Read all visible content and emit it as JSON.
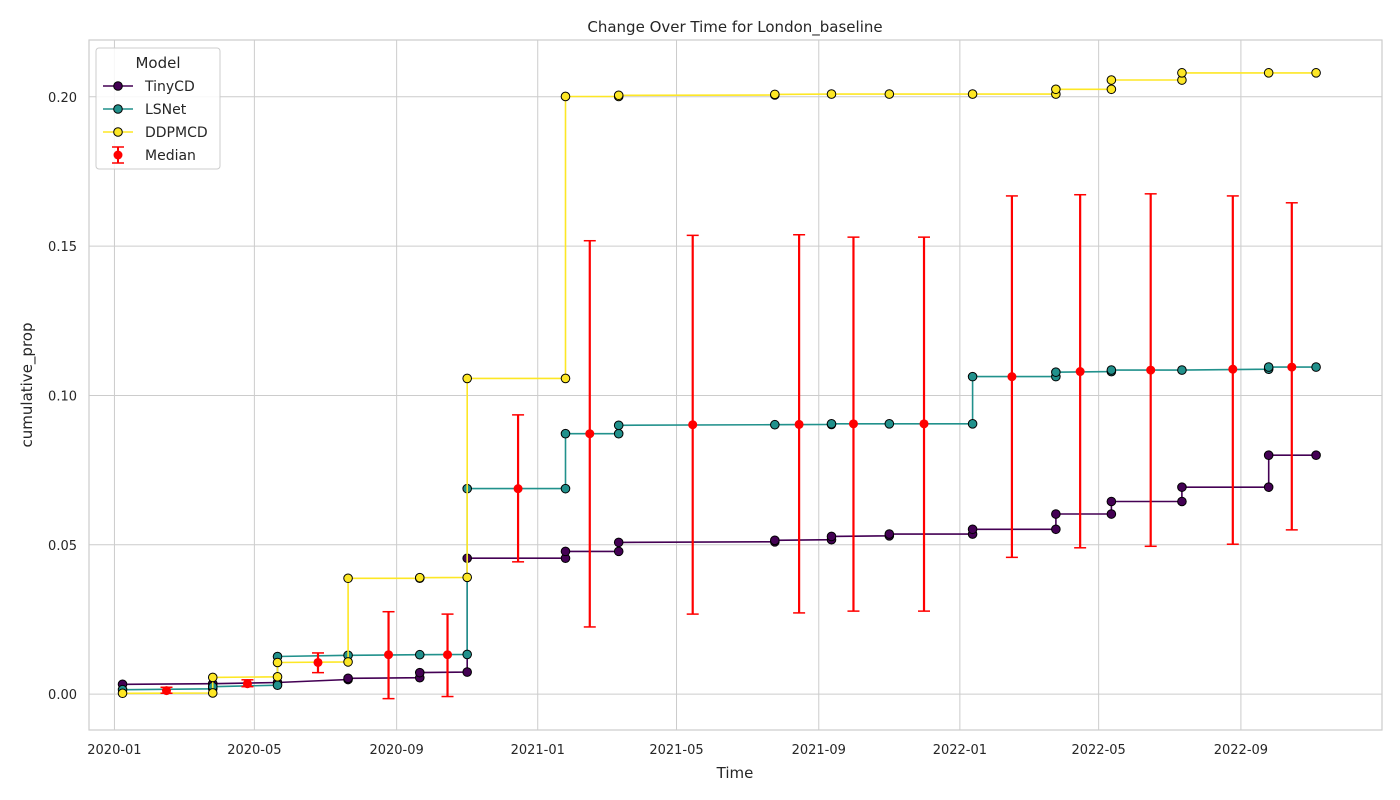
{
  "chart_data": {
    "type": "line",
    "title": "Change Over Time for London_baseline",
    "xlabel": "Time",
    "ylabel": "cumulative_prop",
    "xlim": [
      "2019-12-10",
      "2023-01-01"
    ],
    "ylim": [
      -0.012,
      0.219
    ],
    "x_ticks": [
      "2020-01-01",
      "2020-05-01",
      "2020-09-01",
      "2021-01-01",
      "2021-05-01",
      "2021-09-01",
      "2022-01-01",
      "2022-05-01",
      "2022-09-01"
    ],
    "x_tick_labels": [
      "2020-01",
      "2020-05",
      "2020-09",
      "2021-01",
      "2021-05",
      "2021-09",
      "2022-01",
      "2022-05",
      "2022-09"
    ],
    "y_ticks": [
      0.0,
      0.05,
      0.1,
      0.15,
      0.2
    ],
    "y_tick_labels": [
      "0.00",
      "0.05",
      "0.10",
      "0.15",
      "0.20"
    ],
    "grid": true,
    "legend": {
      "title": "Model",
      "placement": "top-left",
      "entries": [
        "TinyCD",
        "LSNet",
        "DDPMCD",
        "Median"
      ]
    },
    "series": [
      {
        "name": "TinyCD",
        "color": "#440154",
        "points": [
          [
            "2020-01-08",
            0.0033
          ],
          [
            "2020-03-26",
            0.0035
          ],
          [
            "2020-05-21",
            0.0039
          ],
          [
            "2020-07-21",
            0.0049
          ],
          [
            "2020-07-21",
            0.0053
          ],
          [
            "2020-09-21",
            0.0055
          ],
          [
            "2020-09-21",
            0.0072
          ],
          [
            "2020-11-01",
            0.0074
          ],
          [
            "2020-11-01",
            0.0455
          ],
          [
            "2021-01-25",
            0.0455
          ],
          [
            "2021-01-25",
            0.0478
          ],
          [
            "2021-03-12",
            0.0478
          ],
          [
            "2021-03-12",
            0.0508
          ],
          [
            "2021-07-25",
            0.051
          ],
          [
            "2021-07-25",
            0.0515
          ],
          [
            "2021-09-12",
            0.0517
          ],
          [
            "2021-09-12",
            0.0528
          ],
          [
            "2021-11-01",
            0.053
          ],
          [
            "2021-11-01",
            0.0536
          ],
          [
            "2022-01-12",
            0.0536
          ],
          [
            "2022-01-12",
            0.0552
          ],
          [
            "2022-03-25",
            0.0552
          ],
          [
            "2022-03-25",
            0.0603
          ],
          [
            "2022-05-12",
            0.0603
          ],
          [
            "2022-05-12",
            0.0645
          ],
          [
            "2022-07-12",
            0.0645
          ],
          [
            "2022-07-12",
            0.0693
          ],
          [
            "2022-09-25",
            0.0693
          ],
          [
            "2022-09-25",
            0.08
          ],
          [
            "2022-11-05",
            0.08
          ]
        ]
      },
      {
        "name": "LSNet",
        "color": "#21918c",
        "points": [
          [
            "2020-01-08",
            0.0015
          ],
          [
            "2020-03-26",
            0.0018
          ],
          [
            "2020-03-26",
            0.0025
          ],
          [
            "2020-05-21",
            0.003
          ],
          [
            "2020-05-21",
            0.0126
          ],
          [
            "2020-07-21",
            0.013
          ],
          [
            "2020-09-21",
            0.0132
          ],
          [
            "2020-11-01",
            0.0133
          ],
          [
            "2020-11-01",
            0.0688
          ],
          [
            "2021-01-25",
            0.0688
          ],
          [
            "2021-01-25",
            0.0872
          ],
          [
            "2021-03-12",
            0.0872
          ],
          [
            "2021-03-12",
            0.09
          ],
          [
            "2021-07-25",
            0.0902
          ],
          [
            "2021-09-12",
            0.0903
          ],
          [
            "2021-09-12",
            0.0905
          ],
          [
            "2021-11-01",
            0.0905
          ],
          [
            "2022-01-12",
            0.0905
          ],
          [
            "2022-01-12",
            0.1063
          ],
          [
            "2022-03-25",
            0.1063
          ],
          [
            "2022-03-25",
            0.1078
          ],
          [
            "2022-05-12",
            0.108
          ],
          [
            "2022-05-12",
            0.1085
          ],
          [
            "2022-07-12",
            0.1085
          ],
          [
            "2022-09-25",
            0.1088
          ],
          [
            "2022-09-25",
            0.1095
          ],
          [
            "2022-11-05",
            0.1095
          ]
        ]
      },
      {
        "name": "DDPMCD",
        "color": "#fde725",
        "points": [
          [
            "2020-01-08",
            0.0003
          ],
          [
            "2020-03-26",
            0.0004
          ],
          [
            "2020-03-26",
            0.0056
          ],
          [
            "2020-05-21",
            0.0058
          ],
          [
            "2020-05-21",
            0.0106
          ],
          [
            "2020-07-21",
            0.0108
          ],
          [
            "2020-07-21",
            0.0388
          ],
          [
            "2020-09-21",
            0.0388
          ],
          [
            "2020-09-21",
            0.039
          ],
          [
            "2020-11-01",
            0.0391
          ],
          [
            "2020-11-01",
            0.1057
          ],
          [
            "2021-01-25",
            0.1057
          ],
          [
            "2021-01-25",
            0.2001
          ],
          [
            "2021-03-12",
            0.2001
          ],
          [
            "2021-03-12",
            0.2005
          ],
          [
            "2021-07-25",
            0.2006
          ],
          [
            "2021-07-25",
            0.2008
          ],
          [
            "2021-09-12",
            0.2009
          ],
          [
            "2021-11-01",
            0.2009
          ],
          [
            "2022-01-12",
            0.2009
          ],
          [
            "2022-03-25",
            0.2009
          ],
          [
            "2022-03-25",
            0.2025
          ],
          [
            "2022-05-12",
            0.2025
          ],
          [
            "2022-05-12",
            0.2056
          ],
          [
            "2022-07-12",
            0.2056
          ],
          [
            "2022-07-12",
            0.208
          ],
          [
            "2022-09-25",
            0.208
          ],
          [
            "2022-11-05",
            0.208
          ]
        ]
      }
    ],
    "median": {
      "name": "Median",
      "color": "#ff0000",
      "points": [
        {
          "x": "2020-02-15",
          "y": 0.0012,
          "low": 0.0003,
          "high": 0.0023
        },
        {
          "x": "2020-04-25",
          "y": 0.0035,
          "low": 0.0025,
          "high": 0.0048
        },
        {
          "x": "2020-06-25",
          "y": 0.0106,
          "low": 0.0072,
          "high": 0.0138
        },
        {
          "x": "2020-08-25",
          "y": 0.0132,
          "low": -0.0015,
          "high": 0.0276
        },
        {
          "x": "2020-10-15",
          "y": 0.0132,
          "low": -0.0008,
          "high": 0.0268
        },
        {
          "x": "2020-12-15",
          "y": 0.0688,
          "low": 0.0443,
          "high": 0.0935
        },
        {
          "x": "2021-02-15",
          "y": 0.0872,
          "low": 0.0225,
          "high": 0.1518
        },
        {
          "x": "2021-05-15",
          "y": 0.0902,
          "low": 0.0268,
          "high": 0.1536
        },
        {
          "x": "2021-08-15",
          "y": 0.0903,
          "low": 0.0272,
          "high": 0.1538
        },
        {
          "x": "2021-10-01",
          "y": 0.0905,
          "low": 0.0278,
          "high": 0.153
        },
        {
          "x": "2021-12-01",
          "y": 0.0905,
          "low": 0.0278,
          "high": 0.153
        },
        {
          "x": "2022-02-15",
          "y": 0.1063,
          "low": 0.0458,
          "high": 0.1668
        },
        {
          "x": "2022-04-15",
          "y": 0.108,
          "low": 0.049,
          "high": 0.1672
        },
        {
          "x": "2022-06-15",
          "y": 0.1085,
          "low": 0.0495,
          "high": 0.1675
        },
        {
          "x": "2022-08-25",
          "y": 0.1088,
          "low": 0.0502,
          "high": 0.1668
        },
        {
          "x": "2022-10-15",
          "y": 0.1095,
          "low": 0.055,
          "high": 0.1645
        }
      ]
    }
  }
}
